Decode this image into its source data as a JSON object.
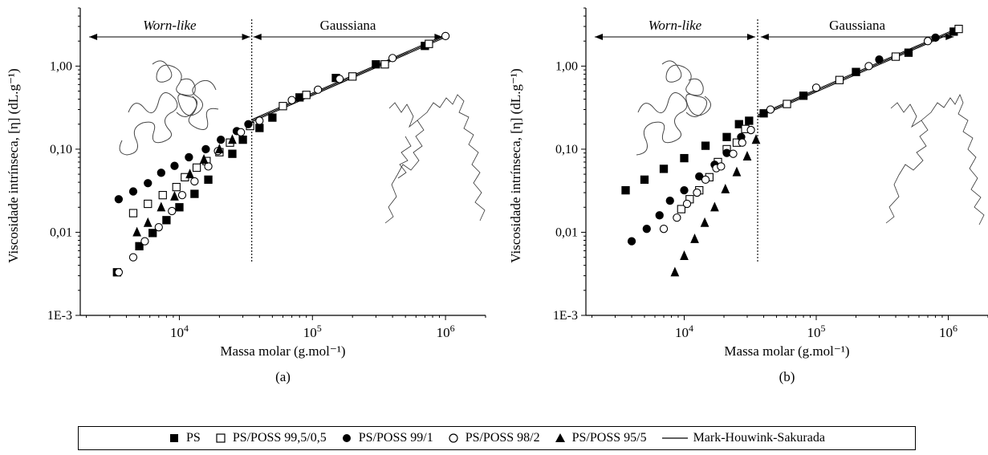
{
  "chart_data": [
    {
      "type": "scatter",
      "panel_label": "(a)",
      "xlabel": "Massa molar (g.mol⁻¹)",
      "ylabel": "Viscosidade intrínseca, [η] (dL.g⁻¹)",
      "xscale": "log",
      "yscale": "log",
      "xlim": [
        1800,
        2000000
      ],
      "ylim": [
        0.001,
        5
      ],
      "x_ticks": [
        {
          "v": 10000,
          "base": "10",
          "exp": "4"
        },
        {
          "v": 100000,
          "base": "10",
          "exp": "5"
        },
        {
          "v": 1000000,
          "base": "10",
          "exp": "6"
        }
      ],
      "y_ticks": [
        {
          "v": 0.001,
          "label": "1E-3"
        },
        {
          "v": 0.01,
          "label": "0,01"
        },
        {
          "v": 0.1,
          "label": "0,10"
        },
        {
          "v": 1,
          "label": "1,00"
        }
      ],
      "divider_x": 35000,
      "regions": [
        {
          "label": "Worn-like",
          "style": "italic",
          "x_from": 2100,
          "x_to": 34000
        },
        {
          "label": "Gaussiana",
          "style": "normal",
          "x_from": 36000,
          "x_to": 950000
        }
      ],
      "series": [
        {
          "name": "PS",
          "marker": "square-filled",
          "x": [
            3400,
            5000,
            6300,
            8000,
            10000,
            13000,
            16500,
            25000,
            30000,
            40000,
            50000,
            80000,
            150000,
            300000,
            700000
          ],
          "y": [
            0.0033,
            0.0068,
            0.0098,
            0.014,
            0.02,
            0.029,
            0.043,
            0.088,
            0.13,
            0.18,
            0.24,
            0.42,
            0.72,
            1.05,
            1.75
          ]
        },
        {
          "name": "PS/POSS 99,5/0,5",
          "marker": "square-open",
          "x": [
            4500,
            5800,
            7500,
            9500,
            11000,
            13500,
            16000,
            20000,
            24000,
            34000,
            60000,
            90000,
            200000,
            350000,
            750000
          ],
          "y": [
            0.017,
            0.022,
            0.028,
            0.035,
            0.046,
            0.06,
            0.072,
            0.092,
            0.12,
            0.19,
            0.33,
            0.45,
            0.75,
            1.05,
            1.85
          ]
        },
        {
          "name": "PS/POSS 99/1",
          "marker": "circle-filled",
          "x": [
            3500,
            4500,
            5800,
            7300,
            9200,
            11800,
            15800,
            20500,
            27000,
            33000
          ],
          "y": [
            0.025,
            0.031,
            0.039,
            0.052,
            0.063,
            0.08,
            0.1,
            0.13,
            0.165,
            0.2
          ]
        },
        {
          "name": "PS/POSS 98/2",
          "marker": "circle-open",
          "x": [
            3500,
            4500,
            5500,
            7000,
            8800,
            10500,
            13000,
            16500,
            19500,
            29000,
            40000,
            70000,
            110000,
            160000,
            400000,
            1000000
          ],
          "y": [
            0.0033,
            0.005,
            0.0078,
            0.0115,
            0.018,
            0.028,
            0.041,
            0.062,
            0.095,
            0.16,
            0.22,
            0.39,
            0.52,
            0.7,
            1.25,
            2.3
          ]
        },
        {
          "name": "PS/POSS 95/5",
          "marker": "triangle-filled",
          "x": [
            4800,
            5800,
            7300,
            9200,
            12000,
            15300,
            20000,
            25000
          ],
          "y": [
            0.01,
            0.013,
            0.02,
            0.027,
            0.05,
            0.075,
            0.1,
            0.13
          ]
        }
      ],
      "lines": [
        {
          "name": "Mark-Houwink-Sakurada",
          "x": [
            35000,
            1000000
          ],
          "y": [
            0.22,
            2.3
          ]
        }
      ]
    },
    {
      "type": "scatter",
      "panel_label": "(b)",
      "xlabel": "Massa molar (g.mol⁻¹)",
      "ylabel": "Viscosidade intrínseca, [η] (dL.g⁻¹)",
      "xscale": "log",
      "yscale": "log",
      "xlim": [
        1800,
        2000000
      ],
      "ylim": [
        0.001,
        5
      ],
      "x_ticks": [
        {
          "v": 10000,
          "base": "10",
          "exp": "4"
        },
        {
          "v": 100000,
          "base": "10",
          "exp": "5"
        },
        {
          "v": 1000000,
          "base": "10",
          "exp": "6"
        }
      ],
      "y_ticks": [
        {
          "v": 0.001,
          "label": "1E-3"
        },
        {
          "v": 0.01,
          "label": "0,01"
        },
        {
          "v": 0.1,
          "label": "0,10"
        },
        {
          "v": 1,
          "label": "1,00"
        }
      ],
      "divider_x": 36000,
      "regions": [
        {
          "label": "Worn-like",
          "style": "italic",
          "x_from": 2100,
          "x_to": 34500
        },
        {
          "label": "Gaussiana",
          "style": "normal",
          "x_from": 38000,
          "x_to": 1100000
        }
      ],
      "series": [
        {
          "name": "PS",
          "marker": "square-filled",
          "x": [
            3600,
            5000,
            7000,
            10000,
            14500,
            21000,
            26000,
            31000,
            40000,
            80000,
            200000,
            500000,
            1100000
          ],
          "y": [
            0.032,
            0.043,
            0.058,
            0.078,
            0.11,
            0.14,
            0.2,
            0.22,
            0.27,
            0.44,
            0.85,
            1.45,
            2.6
          ]
        },
        {
          "name": "PS/POSS 99,5/0,5",
          "marker": "square-open",
          "x": [
            9500,
            11000,
            13000,
            15500,
            18000,
            21000,
            25000,
            29000,
            60000,
            150000,
            400000,
            1200000
          ],
          "y": [
            0.019,
            0.025,
            0.032,
            0.046,
            0.07,
            0.1,
            0.12,
            0.175,
            0.35,
            0.68,
            1.3,
            2.8
          ]
        },
        {
          "name": "PS/POSS 99/1",
          "marker": "circle-filled",
          "x": [
            4000,
            5200,
            6500,
            7800,
            10000,
            13000,
            17000,
            21000,
            27000,
            300000,
            800000
          ],
          "y": [
            0.0078,
            0.011,
            0.016,
            0.024,
            0.032,
            0.047,
            0.065,
            0.09,
            0.14,
            1.2,
            2.2
          ]
        },
        {
          "name": "PS/POSS 98/2",
          "marker": "circle-open",
          "x": [
            7000,
            8800,
            10500,
            12500,
            14500,
            17500,
            19000,
            23500,
            27500,
            32000,
            45000,
            100000,
            250000,
            700000
          ],
          "y": [
            0.011,
            0.015,
            0.022,
            0.03,
            0.043,
            0.059,
            0.062,
            0.088,
            0.12,
            0.17,
            0.3,
            0.55,
            1.0,
            2.0
          ]
        },
        {
          "name": "PS/POSS 95/5",
          "marker": "triangle-filled",
          "x": [
            8500,
            10000,
            12000,
            14300,
            17000,
            20500,
            25000,
            30000,
            35000
          ],
          "y": [
            0.0033,
            0.0052,
            0.0083,
            0.013,
            0.02,
            0.033,
            0.053,
            0.082,
            0.13
          ]
        }
      ],
      "lines": [
        {
          "name": "Mark-Houwink-Sakurada",
          "x": [
            36000,
            1200000
          ],
          "y": [
            0.25,
            2.8
          ]
        }
      ]
    }
  ],
  "legend": [
    {
      "symbol": "square-filled",
      "label": "PS"
    },
    {
      "symbol": "square-open",
      "label": "PS/POSS 99,5/0,5"
    },
    {
      "symbol": "circle-filled",
      "label": "PS/POSS 99/1"
    },
    {
      "symbol": "circle-open",
      "label": "PS/POSS 98/2"
    },
    {
      "symbol": "triangle-filled",
      "label": "PS/POSS 95/5"
    },
    {
      "symbol": "line",
      "label": "Mark-Houwink-Sakurada"
    }
  ]
}
